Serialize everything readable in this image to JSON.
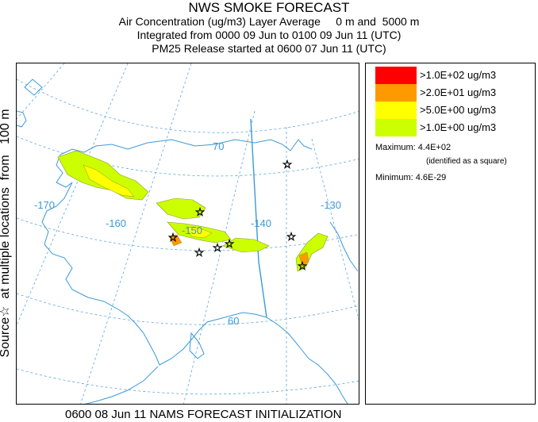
{
  "header": {
    "title": "NWS SMOKE FORECAST",
    "line1": "Air Concentration (ug/m3) Layer Average     0 m and  5000 m",
    "line2": "Integrated from 0000 09 Jun to 0100 09 Jun 11 (UTC)",
    "line3": "PM25 Release started at 0600 07 Jun 11 (UTC)"
  },
  "side_label": "Source☆  at multiple locations  from   100 m",
  "map": {
    "longitude_labels": [
      "-170",
      "-160",
      "-150",
      "-140",
      "-130"
    ],
    "latitude_labels": [
      "70",
      "60"
    ],
    "colors": {
      "coast": "#3a9ad9",
      "graticule": "#5fa8dd",
      "border": "#3a9ad9"
    }
  },
  "legend": {
    "levels": [
      {
        "label": ">1.0E+02 ug/m3",
        "color": "#ff0000"
      },
      {
        "label": ">2.0E+01 ug/m3",
        "color": "#ff9900"
      },
      {
        "label": ">5.0E+00 ug/m3",
        "color": "#ffff00"
      },
      {
        "label": ">1.0E+00 ug/m3",
        "color": "#ccff00"
      }
    ],
    "maximum": "Maximum: 4.4E+02",
    "maximum_note": "(identified as a square)",
    "minimum": "Minimum: 4.6E-29"
  },
  "footer": "0600 08 Jun 11 NAMS FORECAST INITIALIZATION"
}
